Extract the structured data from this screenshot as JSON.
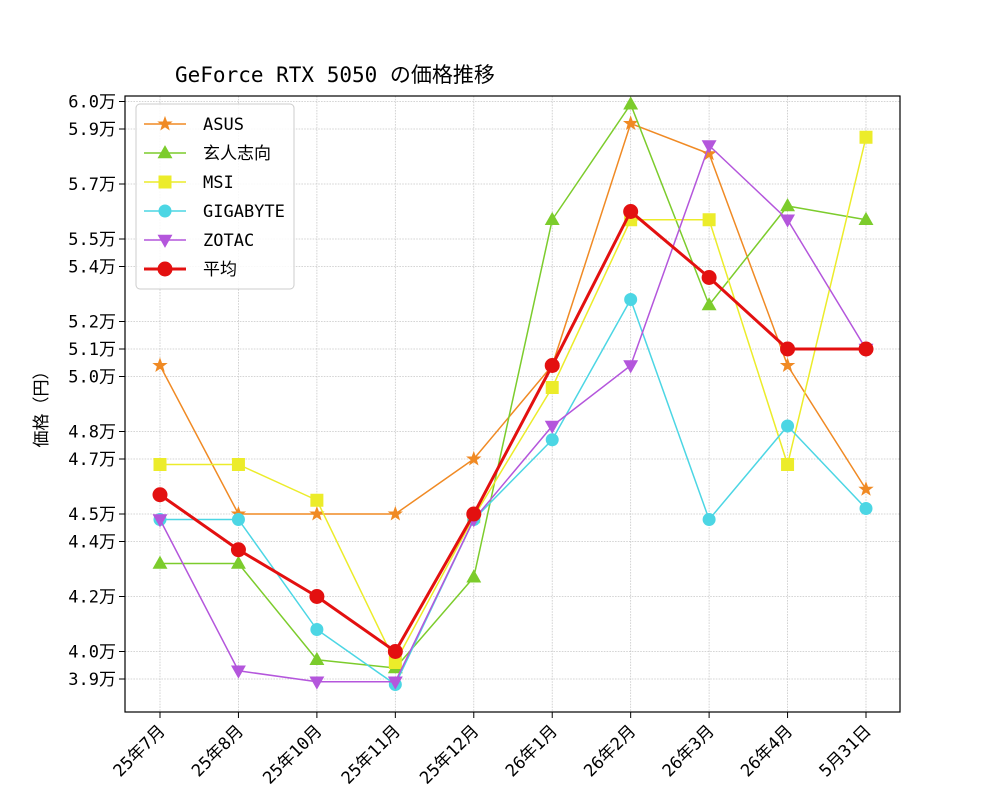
{
  "chart_data": {
    "type": "line",
    "title": "GeForce RTX 5050 の価格推移",
    "xlabel": "",
    "ylabel": "価格（円）",
    "categories": [
      "25年7月",
      "25年8月",
      "25年10月",
      "25年11月",
      "25年12月",
      "26年1月",
      "26年2月",
      "26年3月",
      "26年4月",
      "5月31日"
    ],
    "ylim": [
      37800,
      60200
    ],
    "yticks": [
      39000,
      40000,
      42000,
      44000,
      45000,
      47000,
      48000,
      50000,
      51000,
      52000,
      54000,
      55000,
      57000,
      59000,
      60000
    ],
    "ytick_labels": [
      "3.9万",
      "4.0万",
      "4.2万",
      "4.4万",
      "4.5万",
      "4.7万",
      "4.8万",
      "5.0万",
      "5.1万",
      "5.2万",
      "5.4万",
      "5.5万",
      "5.7万",
      "5.9万",
      "6.0万"
    ],
    "grid": true,
    "legend_position": "top-left",
    "series": [
      {
        "name": "ASUS",
        "color": "#f08a24",
        "marker": "star",
        "width": 1.5,
        "size": 6,
        "values": [
          50400,
          45000,
          45000,
          45000,
          47000,
          50400,
          59200,
          58100,
          50400,
          45900
        ]
      },
      {
        "name": "玄人志向",
        "color": "#7ccc2c",
        "marker": "triangle-up",
        "width": 1.5,
        "size": 6,
        "values": [
          43200,
          43200,
          39700,
          39400,
          42700,
          55700,
          59900,
          52600,
          56200,
          55700
        ]
      },
      {
        "name": "MSI",
        "color": "#ecec2a",
        "marker": "square",
        "width": 1.5,
        "size": 6,
        "values": [
          46800,
          46800,
          45500,
          39600,
          44900,
          49600,
          55700,
          55700,
          46800,
          58700
        ]
      },
      {
        "name": "GIGABYTE",
        "color": "#4cd6e4",
        "marker": "circle",
        "width": 1.5,
        "size": 6,
        "values": [
          44800,
          44800,
          40800,
          38800,
          44800,
          47700,
          52800,
          44800,
          48200,
          45200
        ]
      },
      {
        "name": "ZOTAC",
        "color": "#b456dc",
        "marker": "triangle-down",
        "width": 1.5,
        "size": 6,
        "values": [
          44800,
          39300,
          38900,
          38900,
          44800,
          48200,
          50400,
          58400,
          55700,
          51000
        ]
      },
      {
        "name": "平均",
        "color": "#e31010",
        "marker": "circle",
        "width": 3,
        "size": 7,
        "values": [
          45700,
          43700,
          42000,
          40000,
          45000,
          50400,
          56000,
          53600,
          51000,
          51000
        ]
      }
    ]
  }
}
